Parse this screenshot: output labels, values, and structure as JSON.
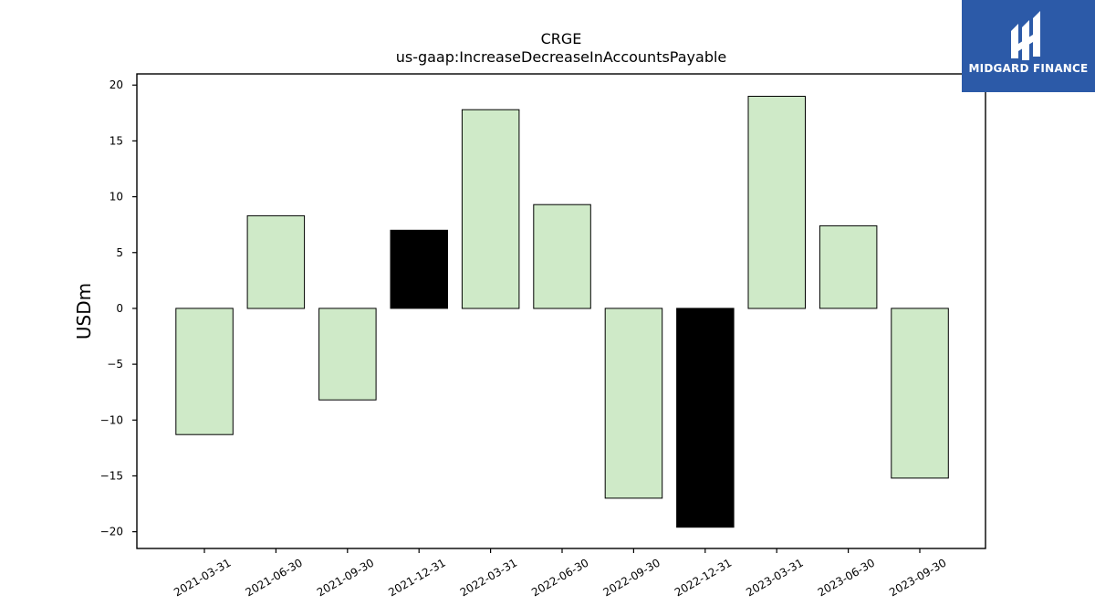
{
  "chart_data": {
    "type": "bar",
    "title": "CRGE",
    "subtitle": "us-gaap:IncreaseDecreaseInAccountsPayable",
    "xlabel": "",
    "ylabel": "USDm",
    "categories": [
      "2021-03-31",
      "2021-06-30",
      "2021-09-30",
      "2021-12-31",
      "2022-03-31",
      "2022-06-30",
      "2022-09-30",
      "2022-12-31",
      "2023-03-31",
      "2023-06-30",
      "2023-09-30"
    ],
    "values": [
      -11.3,
      8.3,
      -8.2,
      7.0,
      17.8,
      9.3,
      -17.0,
      -19.6,
      19.0,
      7.4,
      -15.2
    ],
    "highlighted": [
      false,
      false,
      false,
      true,
      false,
      false,
      false,
      true,
      false,
      false,
      false
    ],
    "ylim": [
      -21.5,
      21.0
    ],
    "yticks": [
      -20,
      -15,
      -10,
      -5,
      0,
      5,
      10,
      15,
      20
    ],
    "ytick_labels": [
      "−20",
      "−15",
      "−10",
      "−5",
      "0",
      "5",
      "10",
      "15",
      "20"
    ],
    "colors": {
      "bar": "#cfeac8",
      "highlight": "#000000",
      "edge": "#000000"
    },
    "grid": false,
    "legend": "none"
  },
  "logo": {
    "text": "MIDGARD FINANCE",
    "background": "#2c5aa8"
  }
}
